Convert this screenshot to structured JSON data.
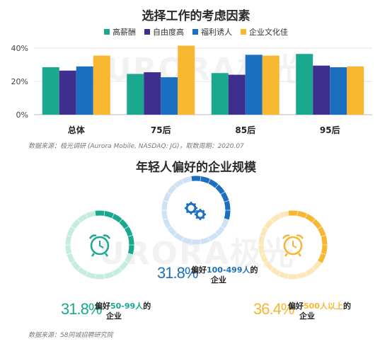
{
  "chart_data": [
    {
      "type": "bar",
      "title": "选择工作的考虑因素",
      "categories": [
        "总体",
        "75后",
        "85后",
        "95后"
      ],
      "series": [
        {
          "name": "高薪酬",
          "color": "#1aa88e",
          "values": [
            28.5,
            24.5,
            25,
            36.5
          ]
        },
        {
          "name": "自由度高",
          "color": "#3e2f8f",
          "values": [
            26.5,
            25.5,
            24,
            29.5
          ]
        },
        {
          "name": "福利诱人",
          "color": "#1a6fc0",
          "values": [
            29,
            22.5,
            36,
            28.5
          ]
        },
        {
          "name": "企业文化佳",
          "color": "#f7b731",
          "values": [
            35.5,
            41.5,
            35.5,
            29
          ]
        }
      ],
      "yticks": [
        "0%",
        "20%",
        "40%"
      ],
      "ylim": [
        0,
        40
      ],
      "source": "数据来源：极光调研 (Aurora Mobile, NASDAQ: JG)，取数周期：2020.07"
    },
    {
      "type": "gauge",
      "title": "年轻人偏好的企业规模",
      "items": [
        {
          "pct": "31.8%",
          "pre": "偏好",
          "highlight": "50-99人",
          "post": "的",
          "line2": "企业",
          "color": "#1aa88e",
          "light": "#c5ece2",
          "icon": "alarm-clock-icon",
          "value": 31.8
        },
        {
          "pct": "31.8%",
          "pre": "偏好",
          "highlight": "100-499人",
          "post": "的",
          "line2": "企业",
          "color": "#1a6fc0",
          "light": "#cfe2f4",
          "icon": "gears-icon",
          "value": 31.8
        },
        {
          "pct": "36.4%",
          "pre": "偏好",
          "highlight": "500人以上",
          "post": "的",
          "line2": "企业",
          "color": "#f7b731",
          "light": "#fbe7b8",
          "icon": "alarm-clock-icon",
          "value": 36.4
        }
      ],
      "source": "数据来源：58同城招聘研究院"
    }
  ],
  "watermark": "URORA极光"
}
